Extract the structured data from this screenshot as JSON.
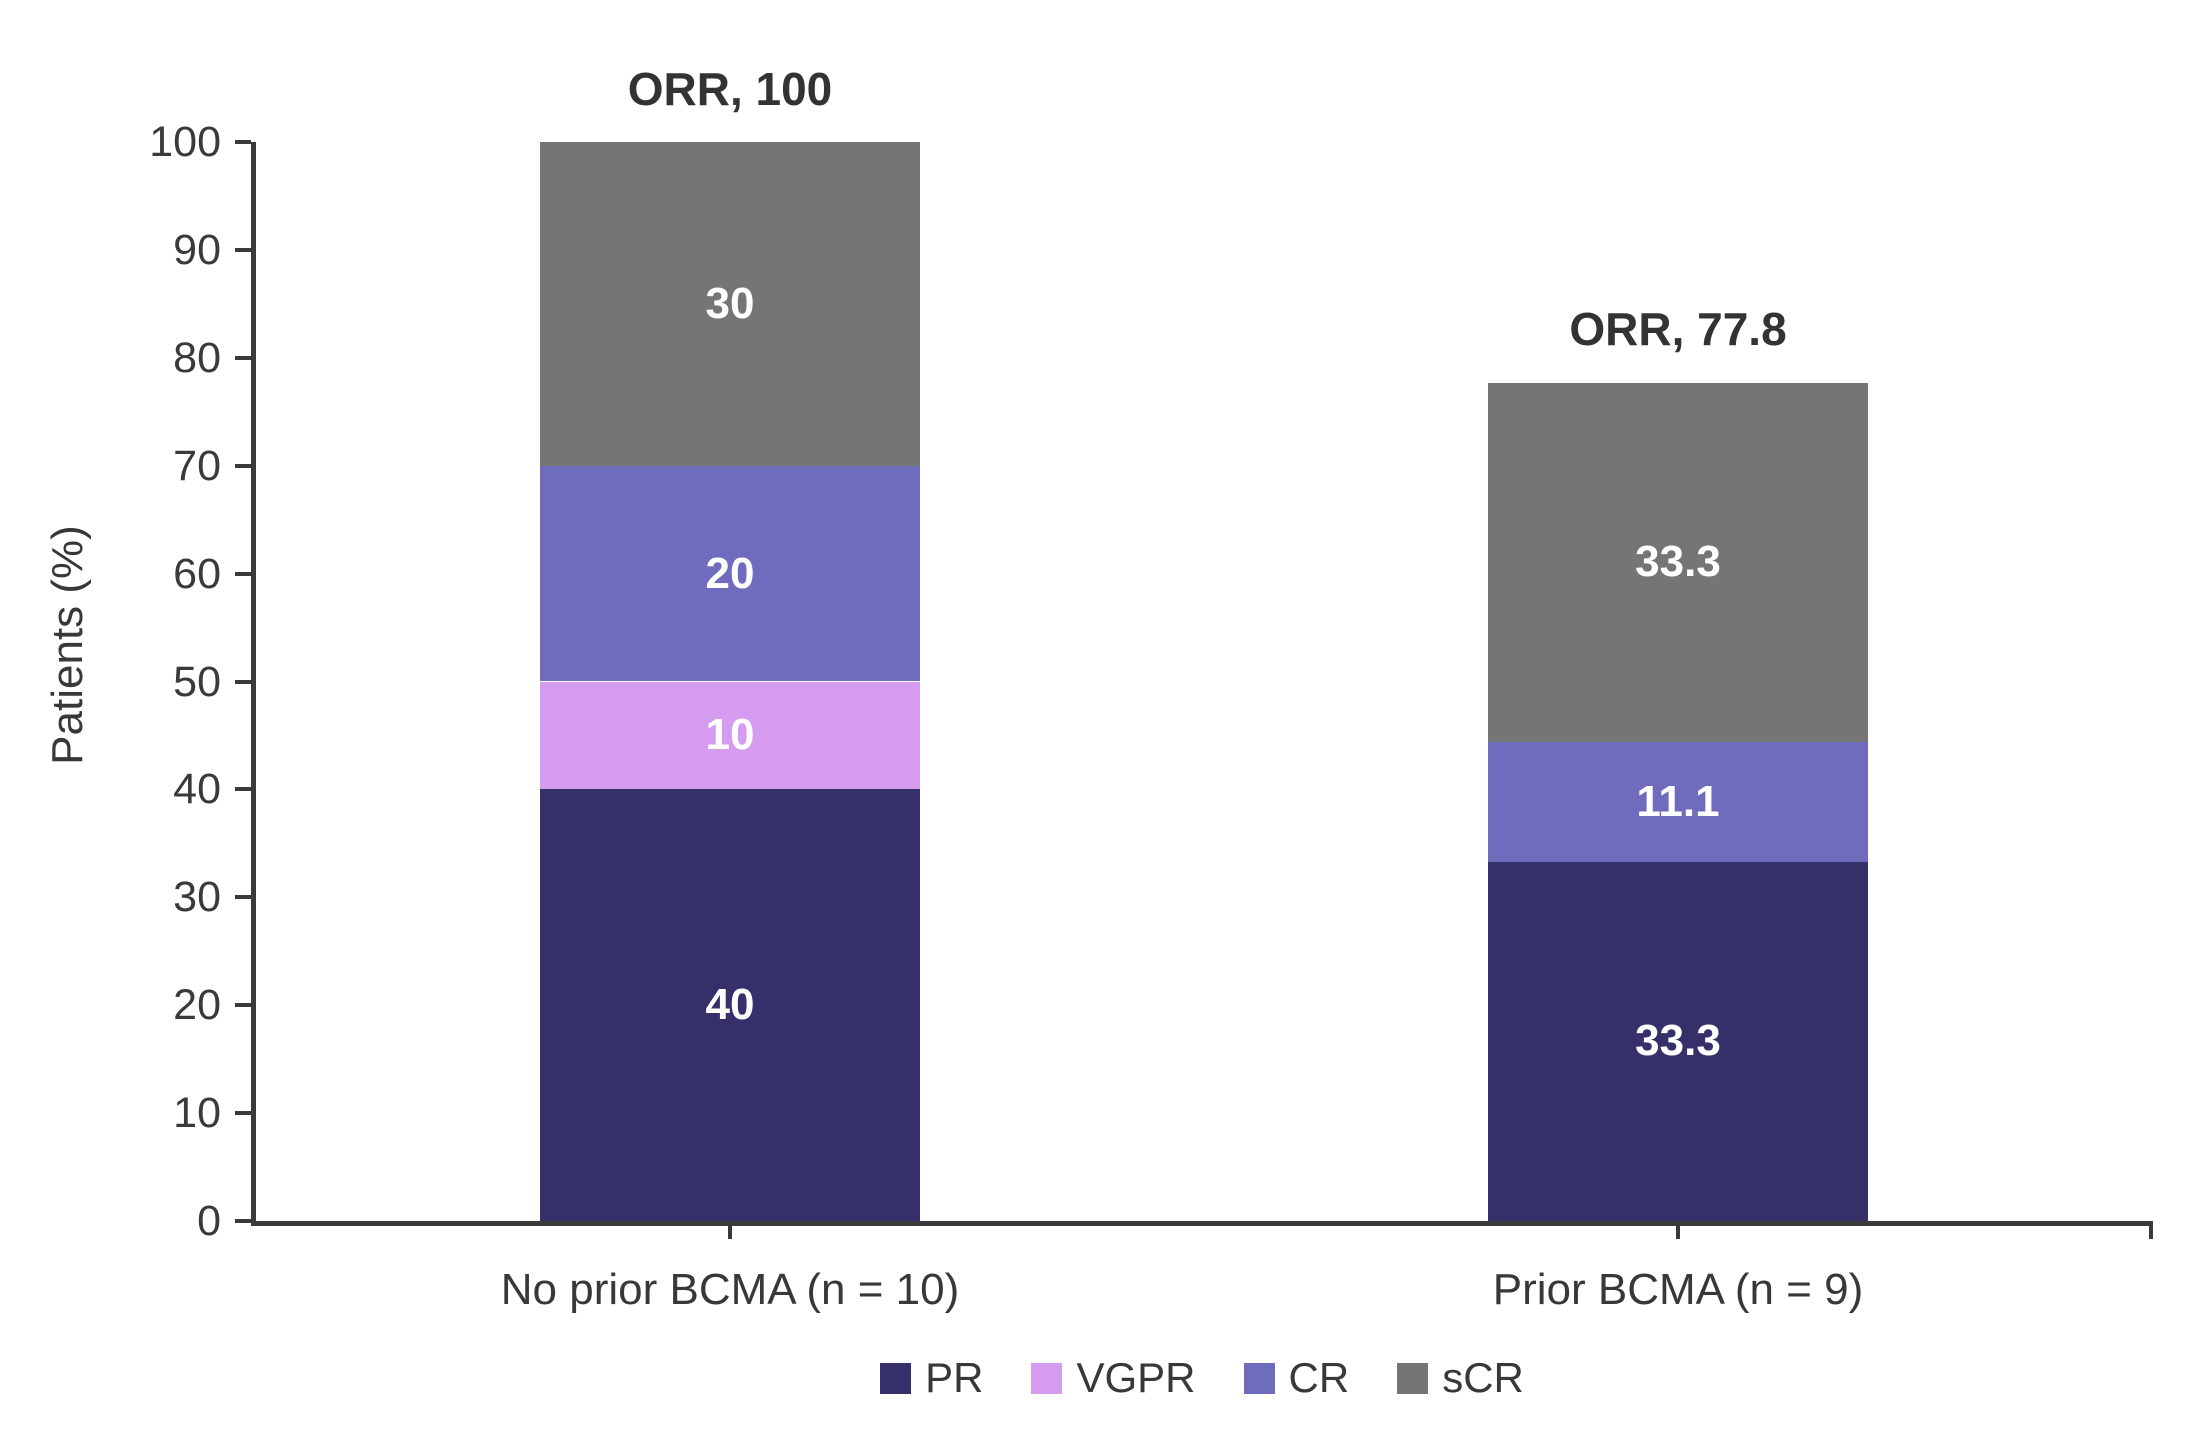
{
  "chart_data": {
    "type": "bar",
    "subtype": "stacked-vertical",
    "title": "",
    "ylabel": "Patients (%)",
    "xlabel": "",
    "ylim": [
      0,
      100
    ],
    "yticks": [
      0,
      10,
      20,
      30,
      40,
      50,
      60,
      70,
      80,
      90,
      100
    ],
    "grid": "off",
    "categories": [
      "No prior BCMA (n = 10)",
      "Prior BCMA (n = 9)"
    ],
    "series": [
      {
        "name": "PR",
        "color": "#353069",
        "values": [
          40,
          33.3
        ],
        "labels": [
          "40",
          "33.3"
        ]
      },
      {
        "name": "VGPR",
        "color": "#d59bef",
        "values": [
          10,
          0
        ],
        "labels": [
          "10",
          ""
        ]
      },
      {
        "name": "CR",
        "color": "#6f6cbe",
        "values": [
          20,
          11.1
        ],
        "labels": [
          "20",
          "11.1"
        ]
      },
      {
        "name": "sCR",
        "color": "#757575",
        "values": [
          30,
          33.3
        ],
        "labels": [
          "30",
          "33.3"
        ]
      }
    ],
    "totals": [
      {
        "label": "ORR, 100",
        "value": 100
      },
      {
        "label": "ORR, 77.8",
        "value": 77.8
      }
    ],
    "legend": {
      "position": "bottom",
      "items": [
        "PR",
        "VGPR",
        "CR",
        "sCR"
      ]
    },
    "colors": {
      "axis": "#3a3a3a",
      "text": "#383838",
      "bar_value_text": "#ffffff"
    }
  }
}
